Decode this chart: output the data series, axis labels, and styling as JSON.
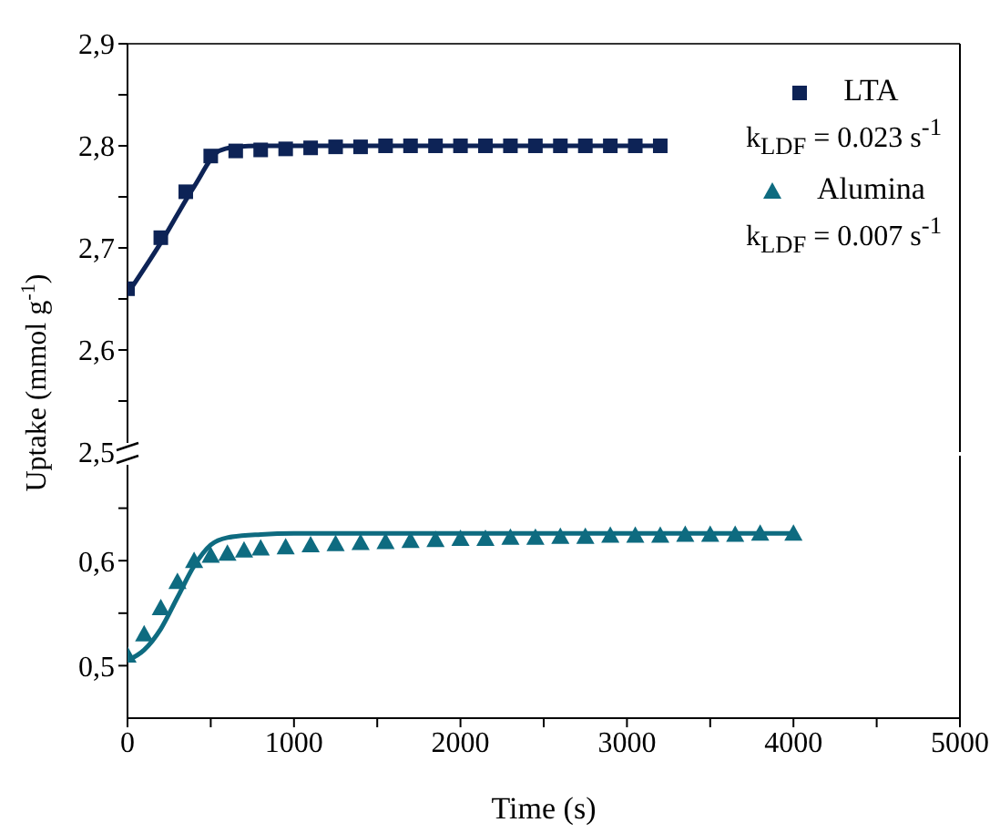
{
  "chart_data": [
    {
      "type": "scatter",
      "ylabel": "Uptake (mmol g$^{-1}$)",
      "xlim": [
        0,
        5000
      ],
      "ylim": [
        2.5,
        2.9
      ],
      "tick_labels": "y",
      "legend": "top right",
      "yticks": [
        {
          "value": 2.5,
          "label": "2,5"
        },
        {
          "value": 2.55,
          "label": null
        },
        {
          "value": 2.6,
          "label": "2,6"
        },
        {
          "value": 2.65,
          "label": null
        },
        {
          "value": 2.7,
          "label": "2,7"
        },
        {
          "value": 2.75,
          "label": null
        },
        {
          "value": 2.8,
          "label": "2,8"
        },
        {
          "value": 2.85,
          "label": null
        },
        {
          "value": 2.9,
          "label": "2,9"
        }
      ],
      "annotations": [
        "k$_{LDF}$ = 0.023 s$^{-1}$",
        "k$_{LDF}$ = 0.007 s$^{-1}$"
      ],
      "series": [
        {
          "name": "LTA",
          "marker": "square",
          "color": "#0d2356",
          "x": [
            0,
            200,
            350,
            500,
            650,
            800,
            950,
            1100,
            1250,
            1400,
            1550,
            1700,
            1850,
            2000,
            2150,
            2300,
            2450,
            2600,
            2750,
            2900,
            3050,
            3200
          ],
          "values": [
            2.66,
            2.71,
            2.755,
            2.79,
            2.795,
            2.796,
            2.797,
            2.798,
            2.799,
            2.799,
            2.8,
            2.8,
            2.8,
            2.8,
            2.8,
            2.8,
            2.8,
            2.8,
            2.8,
            2.8,
            2.8,
            2.8
          ]
        },
        {
          "type": "line",
          "marker": "none",
          "color": "#0d2356",
          "x": [
            0,
            200,
            400,
            550,
            650,
            800,
            1000,
            3200
          ],
          "values": [
            2.655,
            2.705,
            2.76,
            2.795,
            2.799,
            2.8,
            2.8,
            2.8
          ]
        }
      ]
    },
    {
      "type": "scatter",
      "xlabel": "Time (s)",
      "xlim": [
        0,
        5000
      ],
      "ylim": [
        0.45,
        0.7
      ],
      "xticks": [
        0,
        {
          "value": 500,
          "label": null
        },
        1000,
        {
          "value": 1500,
          "label": null
        },
        2000,
        {
          "value": 2500,
          "label": null
        },
        3000,
        {
          "value": 3500,
          "label": null
        },
        4000,
        {
          "value": 4500,
          "label": null
        },
        5000
      ],
      "yticks": [
        {
          "value": 0.5,
          "label": "0,5"
        },
        {
          "value": 0.55,
          "label": null
        },
        {
          "value": 0.6,
          "label": "0,6"
        },
        {
          "value": 0.65,
          "label": null
        }
      ],
      "series": [
        {
          "name": "Alumina",
          "marker": "triangle",
          "color": "#0e6b80",
          "x": [
            0,
            100,
            200,
            300,
            400,
            500,
            600,
            700,
            800,
            950,
            1100,
            1250,
            1400,
            1550,
            1700,
            1850,
            2000,
            2150,
            2300,
            2450,
            2600,
            2750,
            2900,
            3050,
            3200,
            3350,
            3500,
            3650,
            3800,
            4000
          ],
          "values": [
            0.51,
            0.53,
            0.555,
            0.58,
            0.6,
            0.605,
            0.607,
            0.61,
            0.612,
            0.613,
            0.615,
            0.616,
            0.617,
            0.618,
            0.619,
            0.62,
            0.621,
            0.621,
            0.622,
            0.622,
            0.623,
            0.623,
            0.624,
            0.624,
            0.624,
            0.625,
            0.625,
            0.625,
            0.626,
            0.626
          ]
        },
        {
          "type": "line",
          "marker": "none",
          "color": "#0e6b80",
          "x": [
            0,
            100,
            200,
            300,
            400,
            500,
            600,
            800,
            1000,
            4000
          ],
          "values": [
            0.505,
            0.515,
            0.535,
            0.565,
            0.595,
            0.615,
            0.622,
            0.625,
            0.626,
            0.626
          ]
        }
      ]
    }
  ]
}
